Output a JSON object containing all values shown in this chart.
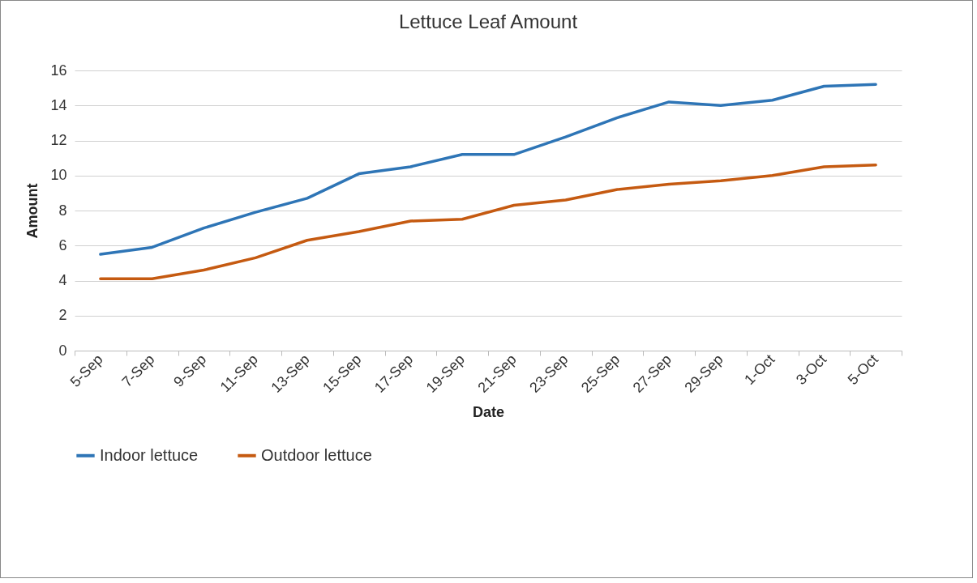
{
  "chart_data": {
    "type": "line",
    "title": "Lettuce Leaf Amount",
    "xlabel": "Date",
    "ylabel": "Amount",
    "categories": [
      "5-Sep",
      "7-Sep",
      "9-Sep",
      "11-Sep",
      "13-Sep",
      "15-Sep",
      "17-Sep",
      "19-Sep",
      "21-Sep",
      "23-Sep",
      "25-Sep",
      "27-Sep",
      "29-Sep",
      "1-Oct",
      "3-Oct",
      "5-Oct"
    ],
    "series": [
      {
        "name": "Indoor lettuce",
        "color": "#2e75b6",
        "values": [
          5.5,
          5.9,
          7.0,
          7.9,
          8.7,
          10.1,
          10.5,
          11.2,
          11.2,
          12.2,
          13.3,
          14.2,
          14.0,
          14.3,
          15.1,
          15.2
        ]
      },
      {
        "name": "Outdoor lettuce",
        "color": "#c55a11",
        "values": [
          4.1,
          4.1,
          4.6,
          5.3,
          6.3,
          6.8,
          7.4,
          7.5,
          8.3,
          8.6,
          9.2,
          9.5,
          9.7,
          10.0,
          10.5,
          10.6
        ]
      }
    ],
    "ylim": [
      0,
      16
    ],
    "yticks": [
      0,
      2,
      4,
      6,
      8,
      10,
      12,
      14,
      16
    ],
    "grid": "y",
    "legend": "bottom",
    "line_style": "solid"
  }
}
